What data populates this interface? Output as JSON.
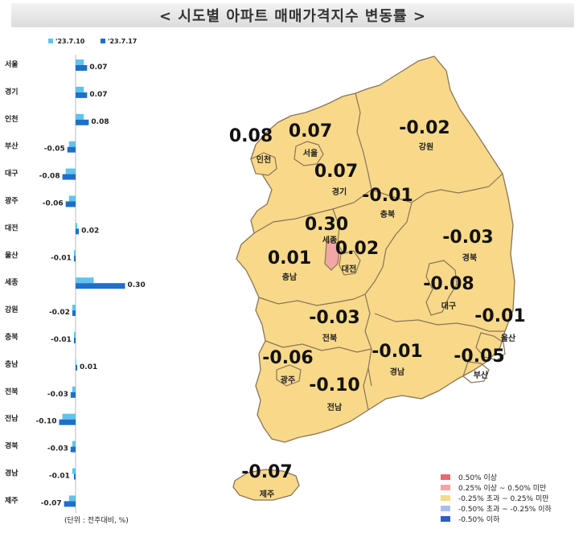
{
  "title": "< 시도별 아파트 매매가격지수 변동률 >",
  "unit_note": "(단위 : 전주대비, %)",
  "colors": {
    "prev_week": "#5fc4ee",
    "this_week": "#1f6fc9",
    "map_fill": "#f8d98a",
    "map_highlight": "#f2a6a6",
    "map_stroke": "#8a7355"
  },
  "chart_data": {
    "type": "bar",
    "orientation": "horizontal",
    "categories": [
      "서울",
      "경기",
      "인천",
      "부산",
      "대구",
      "광주",
      "대전",
      "울산",
      "세종",
      "강원",
      "충북",
      "충남",
      "전북",
      "전남",
      "경북",
      "경남",
      "제주"
    ],
    "series": [
      {
        "name": "'23.7.10",
        "values": [
          0.05,
          0.05,
          0.05,
          -0.04,
          -0.06,
          -0.04,
          0.01,
          -0.01,
          0.11,
          -0.02,
          -0.01,
          0.0,
          -0.02,
          -0.08,
          -0.02,
          -0.02,
          -0.04
        ]
      },
      {
        "name": "'23.7.17",
        "values": [
          0.07,
          0.07,
          0.08,
          -0.05,
          -0.08,
          -0.06,
          0.02,
          -0.01,
          0.3,
          -0.02,
          -0.01,
          0.01,
          -0.03,
          -0.1,
          -0.03,
          -0.01,
          -0.07
        ]
      }
    ],
    "data_labels": [
      "0.07",
      "0.07",
      "0.08",
      "-0.05",
      "-0.08",
      "-0.06",
      "0.02",
      "-0.01",
      "0.30",
      "-0.02",
      "-0.01",
      "0.01",
      "-0.03",
      "-0.10",
      "-0.03",
      "-0.01",
      "-0.07"
    ],
    "legend_position": "top"
  },
  "map_labels": [
    {
      "value": "0.08",
      "name": "인천"
    },
    {
      "value": "0.07",
      "name": "서울"
    },
    {
      "value": "-0.02",
      "name": "강원"
    },
    {
      "value": "0.07",
      "name": "경기"
    },
    {
      "value": "-0.01",
      "name": "충북"
    },
    {
      "value": "0.30",
      "name": "세종"
    },
    {
      "value": "0.02",
      "name": "대전"
    },
    {
      "value": "0.01",
      "name": "충남"
    },
    {
      "value": "-0.03",
      "name": "경북"
    },
    {
      "value": "-0.08",
      "name": "대구"
    },
    {
      "value": "-0.01",
      "name": "울산"
    },
    {
      "value": "-0.03",
      "name": "전북"
    },
    {
      "value": "-0.06",
      "name": "광주"
    },
    {
      "value": "-0.01",
      "name": "경남"
    },
    {
      "value": "-0.05",
      "name": "부산"
    },
    {
      "value": "-0.10",
      "name": "전남"
    },
    {
      "value": "-0.07",
      "name": "제주"
    }
  ],
  "legend": [
    {
      "label": "0.50% 이상",
      "color": "#e8696e"
    },
    {
      "label": "0.25% 이상 ~ 0.50% 미만",
      "color": "#f2a6a6"
    },
    {
      "label": "-0.25% 초과 ~ 0.25% 미만",
      "color": "#f8d98a"
    },
    {
      "label": "-0.50% 초과 ~ -0.25% 이하",
      "color": "#a9bfe8"
    },
    {
      "label": "-0.50% 이하",
      "color": "#2f5fbf"
    }
  ]
}
